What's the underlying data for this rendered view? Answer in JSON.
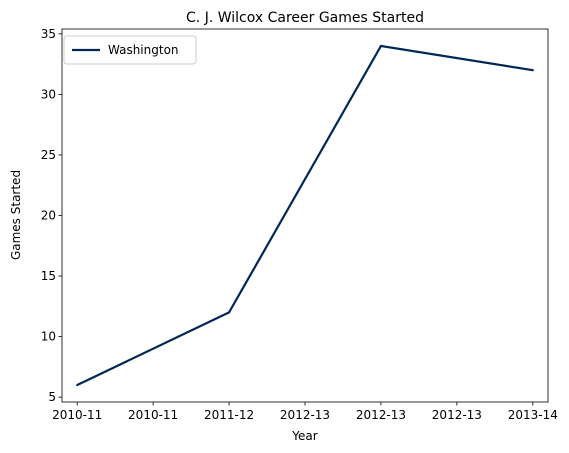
{
  "chart_data": {
    "type": "line",
    "title": "C. J. Wilcox Career Games Started",
    "xlabel": "Year",
    "ylabel": "Games Started",
    "x_tick_labels": [
      "2010-11",
      "2010-11",
      "2011-12",
      "2012-13",
      "2012-13",
      "2012-13",
      "2013-14"
    ],
    "x_points": [
      0,
      2,
      4,
      6
    ],
    "xlim": [
      -0.2,
      6.2
    ],
    "ylim": [
      4.6,
      35.4
    ],
    "y_ticks": [
      5,
      10,
      15,
      20,
      25,
      30,
      35
    ],
    "grid": false,
    "legend_position": "upper-left",
    "series": [
      {
        "name": "Washington",
        "color": "#002855",
        "x": [
          "2010-11",
          "2011-12",
          "2012-13",
          "2013-14"
        ],
        "values": [
          6,
          12,
          34,
          32
        ]
      }
    ]
  }
}
